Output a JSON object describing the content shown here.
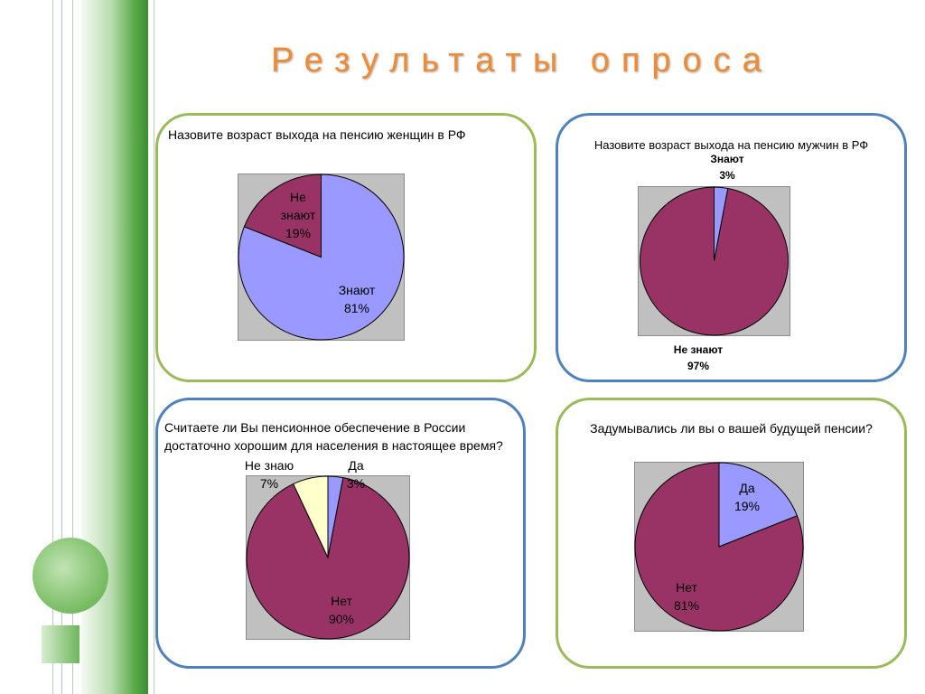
{
  "page": {
    "title": "Результаты опроса"
  },
  "colors": {
    "purple": "#993366",
    "lavender": "#9999ff",
    "cream": "#ffffcc",
    "green_border": "#9bbb59",
    "blue_border": "#4f81bd",
    "title": "#f08a33"
  },
  "chart_data": [
    {
      "type": "pie",
      "title": "Назовите возраст выхода на пенсию женщин в РФ",
      "slices": [
        {
          "label": "Знают",
          "value": 81,
          "value_label": "81%",
          "color": "#9999ff"
        },
        {
          "label": "Не знают",
          "value": 19,
          "value_label": "19%",
          "color": "#993366"
        }
      ]
    },
    {
      "type": "pie",
      "title": "Назовите возраст выхода на пенсию мужчин в РФ",
      "slices": [
        {
          "label": "Знают",
          "value": 3,
          "value_label": "3%",
          "color": "#9999ff"
        },
        {
          "label": "Не знают",
          "value": 97,
          "value_label": "97%",
          "color": "#993366"
        }
      ]
    },
    {
      "type": "pie",
      "title": "Считаете ли Вы пенсионное обеспечение в России достаточно хорошим для населения в настоящее время?",
      "slices": [
        {
          "label": "Да",
          "value": 3,
          "value_label": "3%",
          "color": "#9999ff"
        },
        {
          "label": "Нет",
          "value": 90,
          "value_label": "90%",
          "color": "#993366"
        },
        {
          "label": "Не знаю",
          "value": 7,
          "value_label": "7%",
          "color": "#ffffcc"
        }
      ]
    },
    {
      "type": "pie",
      "title": "Задумывались ли вы о вашей будущей пенсии?",
      "slices": [
        {
          "label": "Да",
          "value": 19,
          "value_label": "19%",
          "color": "#9999ff"
        },
        {
          "label": "Нет",
          "value": 81,
          "value_label": "81%",
          "color": "#993366"
        }
      ]
    }
  ]
}
